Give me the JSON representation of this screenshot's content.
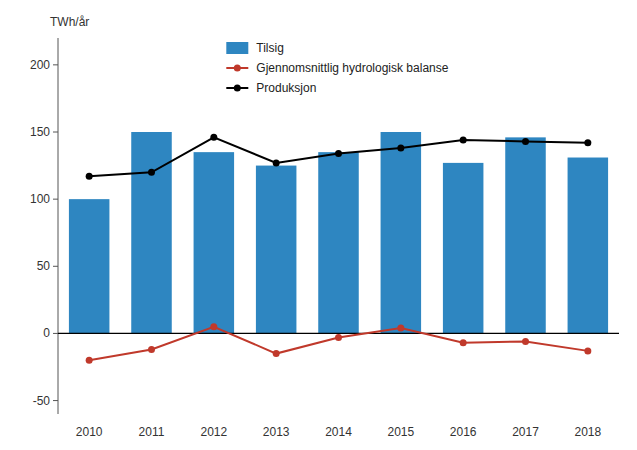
{
  "chart_data": {
    "type": "bar",
    "ylabel": "TWh/år",
    "categories": [
      2010,
      2011,
      2012,
      2013,
      2014,
      2015,
      2016,
      2017,
      2018
    ],
    "series": [
      {
        "name": "Tilsig",
        "type": "bar",
        "color": "#2e86c1",
        "values": [
          100,
          150,
          135,
          125,
          135,
          150,
          127,
          146,
          131
        ]
      },
      {
        "name": "Gjennomsnittlig hydrologisk balanse",
        "type": "line",
        "color": "#c0392b",
        "marker": "circle",
        "line_style": "solid",
        "values": [
          -20,
          -12,
          5,
          -15,
          -3,
          4,
          -7,
          -6,
          -13
        ]
      },
      {
        "name": "Produksjon",
        "type": "line",
        "color": "#000000",
        "marker": "circle",
        "line_style": "solid",
        "values": [
          117,
          120,
          146,
          127,
          134,
          138,
          144,
          143,
          142
        ]
      }
    ],
    "ylim": [
      -60,
      220
    ],
    "yticks": [
      -50,
      0,
      50,
      100,
      150,
      200
    ],
    "grid": false,
    "legend": "upper center"
  }
}
